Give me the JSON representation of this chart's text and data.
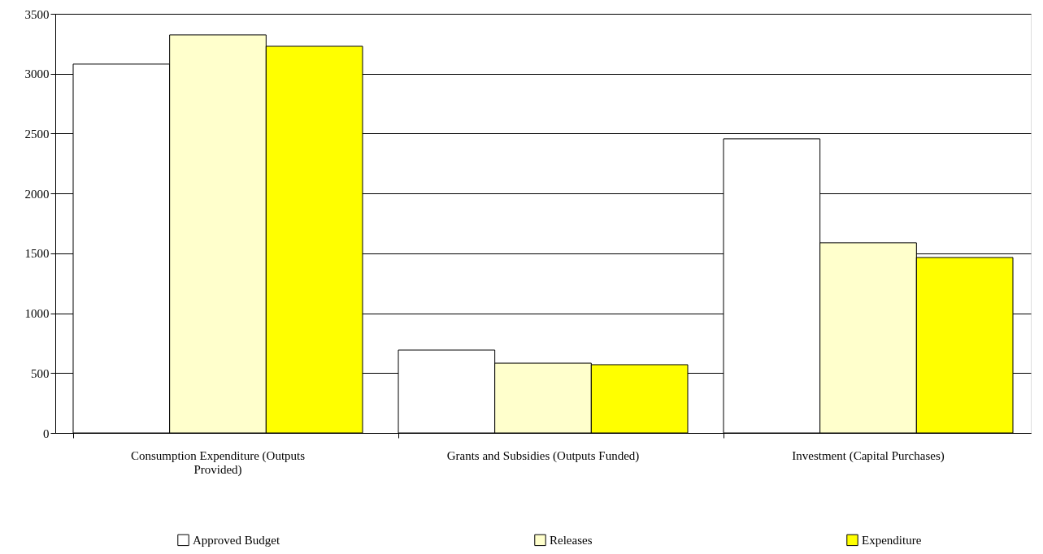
{
  "chart_data": {
    "type": "bar",
    "categories": [
      "Consumption Expenditure (Outputs Provided)",
      "Grants and Subsidies (Outputs Funded)",
      "Investment (Capital Purchases)"
    ],
    "series": [
      {
        "name": "Approved Budget",
        "color": "#ffffff",
        "values": [
          3080,
          692,
          2456
        ]
      },
      {
        "name": "Releases",
        "color": "#ffffcc",
        "values": [
          3324,
          583,
          1588
        ]
      },
      {
        "name": "Expenditure",
        "color": "#ffff00",
        "values": [
          3229,
          570,
          1465
        ]
      }
    ],
    "ylim": [
      0,
      3500
    ],
    "yticks": [
      0,
      500,
      1000,
      1500,
      2000,
      2500,
      3000,
      3500
    ],
    "grid": "y",
    "legend": "bottom"
  }
}
